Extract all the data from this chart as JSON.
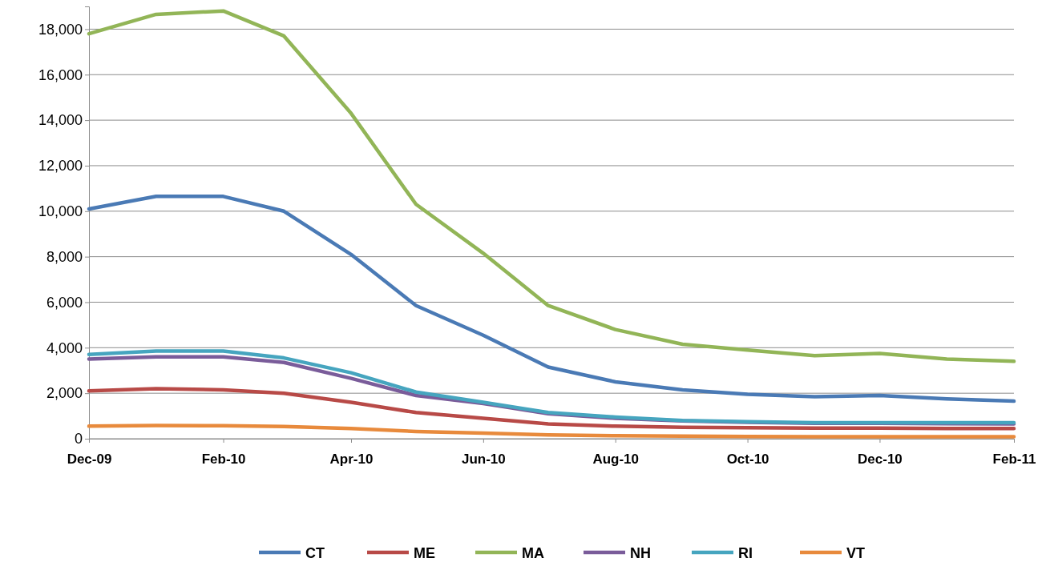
{
  "chart_data": {
    "type": "line",
    "x": [
      "2009-12",
      "2010-01",
      "2010-02",
      "2010-03",
      "2010-04",
      "2010-05",
      "2010-06",
      "2010-07",
      "2010-08",
      "2010-09",
      "2010-10",
      "2010-11",
      "2010-12",
      "2011-01",
      "2011-02"
    ],
    "xlim": [
      "2009-12",
      "2011-02"
    ],
    "xticks": [
      {
        "value": "2009-12",
        "label": "Dec-09"
      },
      {
        "value": "2010-02",
        "label": "Feb-10"
      },
      {
        "value": "2010-04",
        "label": "Apr-10"
      },
      {
        "value": "2010-06",
        "label": "Jun-10"
      },
      {
        "value": "2010-08",
        "label": "Aug-10"
      },
      {
        "value": "2010-10",
        "label": "Oct-10"
      },
      {
        "value": "2010-12",
        "label": "Dec-10"
      },
      {
        "value": "2011-02",
        "label": "Feb-11"
      }
    ],
    "ylim": [
      0,
      19000
    ],
    "yticks": [
      {
        "value": 0,
        "label": "0"
      },
      {
        "value": 2000,
        "label": "2,000"
      },
      {
        "value": 4000,
        "label": "4,000"
      },
      {
        "value": 6000,
        "label": "6,000"
      },
      {
        "value": 8000,
        "label": "8,000"
      },
      {
        "value": 10000,
        "label": "10,000"
      },
      {
        "value": 12000,
        "label": "12,000"
      },
      {
        "value": 14000,
        "label": "14,000"
      },
      {
        "value": 16000,
        "label": "16,000"
      },
      {
        "value": 18000,
        "label": "18,000"
      }
    ],
    "grid": "y",
    "legend": "bottom",
    "marker": "none",
    "line_style": "solid",
    "series": [
      {
        "name": "CT",
        "color": "#4a7ab5",
        "values": [
          10100,
          10650,
          10650,
          10000,
          8100,
          5850,
          4550,
          3150,
          2500,
          2150,
          1950,
          1850,
          1900,
          1750,
          1650
        ]
      },
      {
        "name": "ME",
        "color": "#b84a47",
        "values": [
          2100,
          2200,
          2150,
          2000,
          1600,
          1150,
          900,
          650,
          550,
          500,
          480,
          470,
          470,
          450,
          450
        ]
      },
      {
        "name": "MA",
        "color": "#92b557",
        "values": [
          17800,
          18650,
          18800,
          17700,
          14300,
          10300,
          8150,
          5850,
          4800,
          4150,
          3900,
          3650,
          3750,
          3500,
          3400
        ]
      },
      {
        "name": "NH",
        "color": "#7a5c9a",
        "values": [
          3500,
          3600,
          3600,
          3350,
          2650,
          1900,
          1550,
          1100,
          900,
          780,
          720,
          680,
          680,
          660,
          650
        ]
      },
      {
        "name": "RI",
        "color": "#46a5bf",
        "values": [
          3700,
          3850,
          3850,
          3550,
          2900,
          2050,
          1600,
          1150,
          950,
          800,
          750,
          700,
          700,
          700,
          700
        ]
      },
      {
        "name": "VT",
        "color": "#e88a3c",
        "values": [
          550,
          580,
          570,
          540,
          450,
          320,
          250,
          170,
          130,
          110,
          100,
          90,
          90,
          90,
          90
        ]
      }
    ]
  }
}
